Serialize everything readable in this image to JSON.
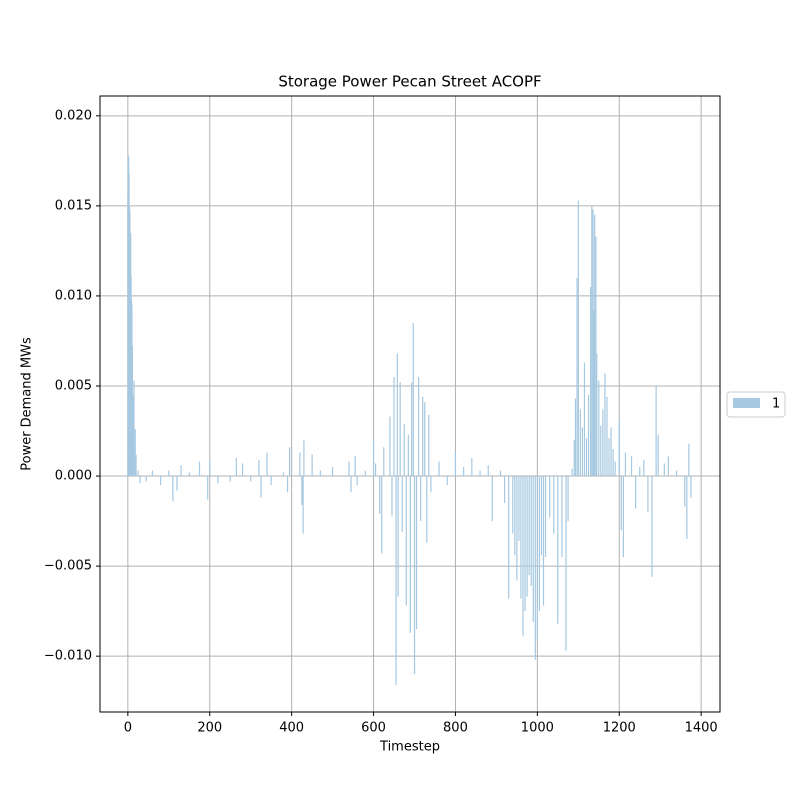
{
  "chart_data": {
    "type": "bar",
    "title": "Storage Power Pecan Street ACOPF",
    "xlabel": "Timestep",
    "ylabel": "Power Demand MWs",
    "xlim": [
      -68,
      1446
    ],
    "ylim": [
      -0.0131,
      0.0211
    ],
    "xticks": [
      0,
      200,
      400,
      600,
      800,
      1000,
      1200,
      1400
    ],
    "yticks": [
      {
        "value": -0.01,
        "label": "−0.010"
      },
      {
        "value": -0.005,
        "label": "−0.005"
      },
      {
        "value": 0,
        "label": "0.000"
      },
      {
        "value": 0.005,
        "label": "0.005"
      },
      {
        "value": 0.01,
        "label": "0.010"
      },
      {
        "value": 0.015,
        "label": "0.015"
      },
      {
        "value": 0.02,
        "label": "0.020"
      }
    ],
    "grid": true,
    "legend": "right",
    "series": [
      {
        "name": "1",
        "color": "#a6c8e0",
        "x": [
          0,
          1,
          2,
          3,
          4,
          5,
          6,
          7,
          8,
          9,
          10,
          11,
          13,
          15,
          18,
          20,
          25,
          30,
          45,
          60,
          80,
          100,
          110,
          120,
          130,
          150,
          175,
          195,
          200,
          220,
          250,
          265,
          280,
          300,
          320,
          325,
          340,
          350,
          380,
          390,
          395,
          420,
          425,
          428,
          430,
          450,
          470,
          500,
          540,
          545,
          555,
          560,
          580,
          600,
          605,
          615,
          620,
          625,
          640,
          645,
          650,
          655,
          658,
          660,
          665,
          670,
          675,
          680,
          685,
          690,
          693,
          697,
          700,
          705,
          710,
          715,
          720,
          725,
          730,
          735,
          740,
          760,
          780,
          800,
          820,
          840,
          860,
          880,
          890,
          910,
          920,
          930,
          940,
          945,
          950,
          955,
          960,
          965,
          970,
          975,
          980,
          985,
          990,
          995,
          1000,
          1005,
          1010,
          1015,
          1020,
          1030,
          1040,
          1050,
          1060,
          1070,
          1075,
          1085,
          1090,
          1093,
          1097,
          1100,
          1105,
          1110,
          1115,
          1120,
          1125,
          1130,
          1133,
          1136,
          1138,
          1140,
          1143,
          1145,
          1150,
          1155,
          1160,
          1165,
          1170,
          1175,
          1180,
          1185,
          1190,
          1200,
          1205,
          1210,
          1215,
          1230,
          1240,
          1250,
          1260,
          1270,
          1280,
          1290,
          1295,
          1310,
          1320,
          1340,
          1360,
          1365,
          1370,
          1375
        ],
        "values": [
          0.0155,
          0.0178,
          0.0177,
          0.0168,
          0.015,
          0.0148,
          0.0134,
          0.0135,
          0.0111,
          0.0098,
          0.0095,
          0.0072,
          0.0045,
          0.0053,
          0.0026,
          0.0012,
          0.0003,
          -0.0004,
          -0.0003,
          0.0003,
          -0.0005,
          0.0003,
          -0.0014,
          -0.0008,
          0.0006,
          0.0002,
          0.0008,
          -0.0013,
          0.0009,
          -0.0004,
          -0.0003,
          0.001,
          0.0007,
          -0.0003,
          0.0009,
          -0.0012,
          0.0013,
          -0.0005,
          0.0002,
          -0.0009,
          0.0016,
          0.0013,
          -0.0016,
          -0.0032,
          0.002,
          0.0012,
          0.0003,
          0.0005,
          0.0008,
          -0.0009,
          0.0011,
          -0.0005,
          0.0003,
          0.0021,
          0.0007,
          -0.0021,
          -0.0043,
          0.0016,
          0.0033,
          -0.0022,
          0.0055,
          -0.0116,
          0.0068,
          -0.0067,
          0.0052,
          -0.0031,
          0.0029,
          -0.0072,
          0.0023,
          -0.0087,
          0.0052,
          0.0085,
          -0.011,
          -0.0085,
          0.0055,
          -0.0025,
          0.0044,
          0.0041,
          -0.0037,
          0.0034,
          -0.0009,
          0.0008,
          -0.0005,
          0.0013,
          0.0005,
          0.001,
          0.0003,
          0.0006,
          -0.0025,
          0.0003,
          -0.0015,
          -0.0068,
          -0.0032,
          -0.0044,
          -0.0058,
          -0.0036,
          -0.0068,
          -0.0089,
          -0.0075,
          -0.0067,
          -0.0055,
          -0.0061,
          -0.0081,
          -0.0102,
          -0.0091,
          -0.0075,
          -0.0044,
          -0.0072,
          -0.0045,
          -0.0023,
          -0.0032,
          -0.0082,
          -0.0045,
          -0.0097,
          -0.0025,
          0.0004,
          0.002,
          0.0043,
          0.011,
          0.0153,
          0.0037,
          0.0027,
          0.0063,
          0.0021,
          0.0045,
          0.0105,
          0.015,
          0.0148,
          0.0092,
          0.0145,
          0.0133,
          0.0068,
          0.0053,
          0.0028,
          0.0037,
          0.0057,
          0.0044,
          0.0021,
          0.0027,
          0.0015,
          0.0008,
          0.0032,
          -0.003,
          -0.0045,
          0.0013,
          0.0011,
          -0.0018,
          0.0005,
          0.0009,
          -0.002,
          -0.0056,
          0.005,
          0.0023,
          0.0007,
          0.0011,
          0.0003,
          -0.0017,
          -0.0035,
          0.0018,
          -0.0012
        ]
      }
    ]
  }
}
